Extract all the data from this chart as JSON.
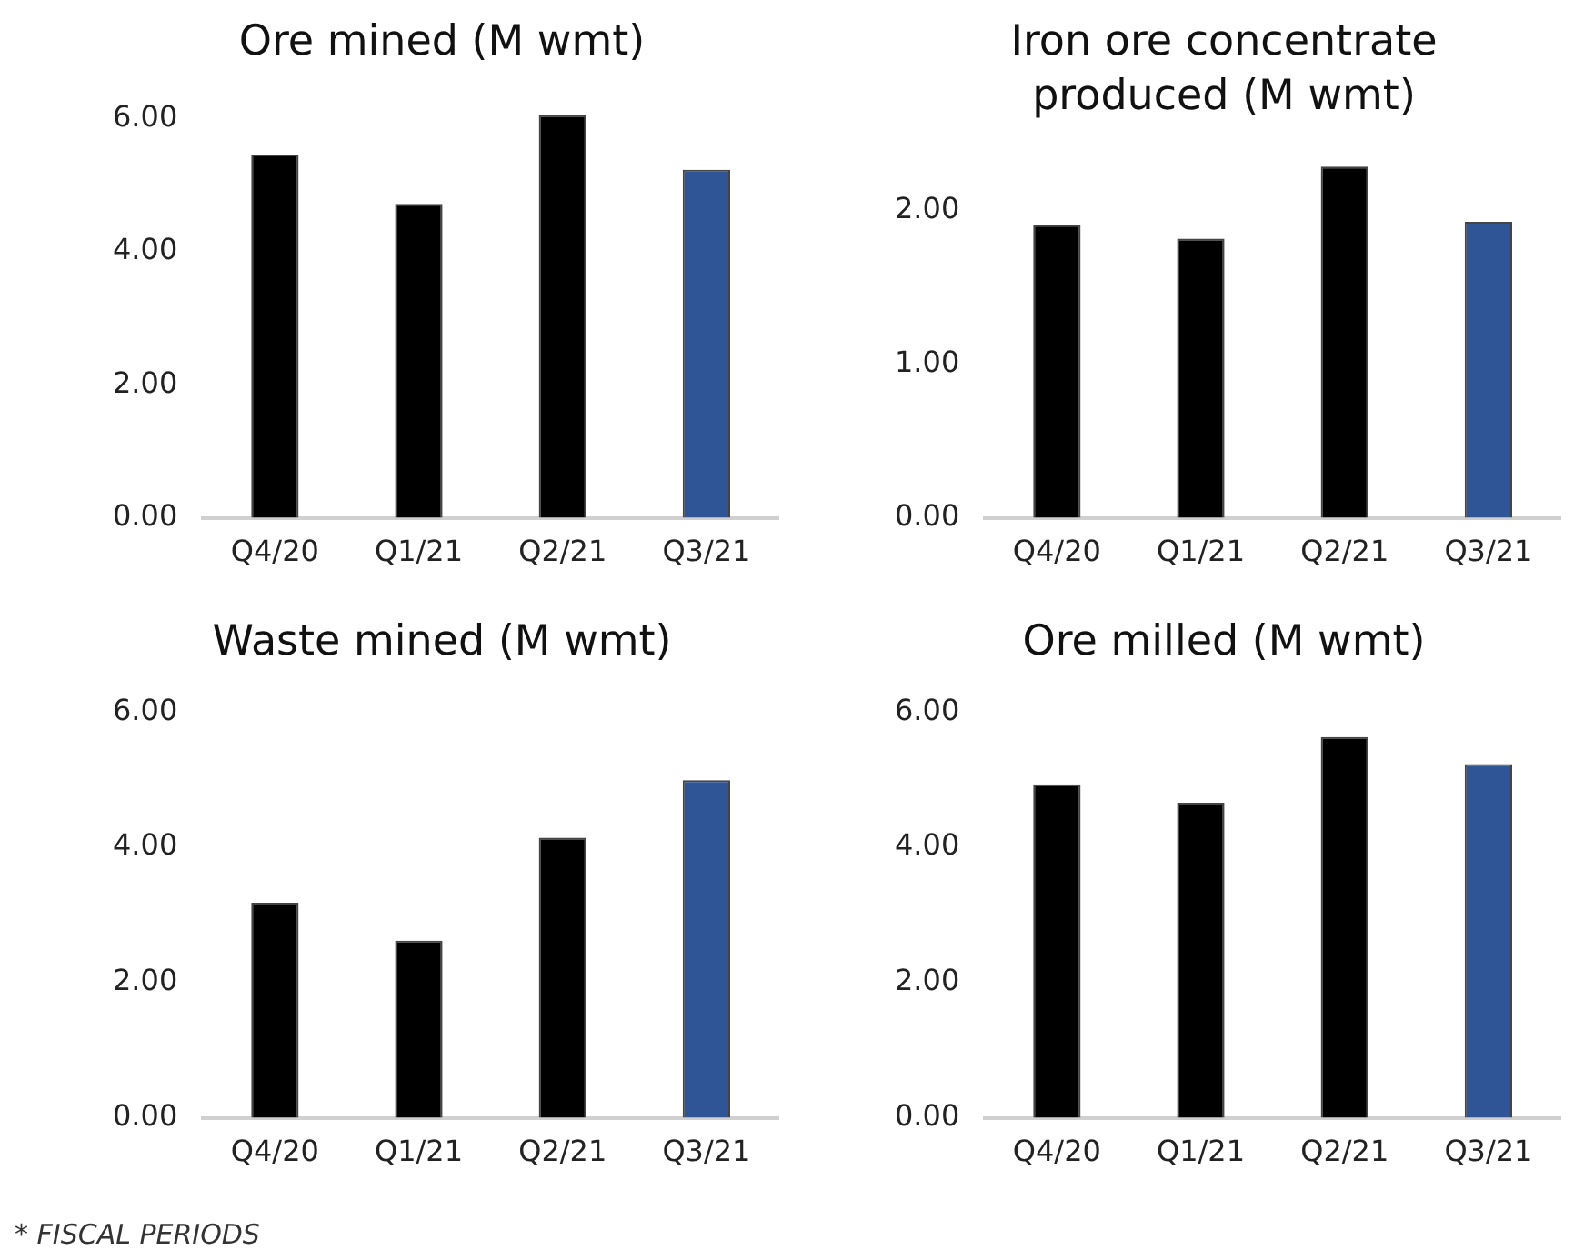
{
  "chart_data": [
    {
      "type": "bar",
      "title": "Ore mined (M wmt)",
      "categories": [
        "Q4/20",
        "Q1/21",
        "Q2/21",
        "Q3/21"
      ],
      "values": [
        5.46,
        4.72,
        6.05,
        5.23
      ],
      "colors": [
        "#000000",
        "#000000",
        "#000000",
        "#2f5597"
      ],
      "ylim": [
        0,
        6.1
      ],
      "yticks": [
        {
          "value": 0,
          "label": "0.00"
        },
        {
          "value": 2,
          "label": "2.00"
        },
        {
          "value": 4,
          "label": "4.00"
        },
        {
          "value": 6,
          "label": "6.00"
        }
      ],
      "grid": false,
      "legend": false
    },
    {
      "type": "bar",
      "title": "Iron ore concentrate produced (M wmt)",
      "categories": [
        "Q4/20",
        "Q1/21",
        "Q2/21",
        "Q3/21"
      ],
      "values": [
        1.91,
        1.82,
        2.29,
        1.93
      ],
      "colors": [
        "#000000",
        "#000000",
        "#000000",
        "#2f5597"
      ],
      "ylim": [
        0,
        2.29
      ],
      "yticks": [
        {
          "value": 0,
          "label": "0.00"
        },
        {
          "value": 1,
          "label": "1.00"
        },
        {
          "value": 2,
          "label": "2.00"
        }
      ],
      "grid": false,
      "legend": false
    },
    {
      "type": "bar",
      "title": "Waste mined (M wmt)",
      "categories": [
        "Q4/20",
        "Q1/21",
        "Q2/21",
        "Q3/21"
      ],
      "values": [
        3.18,
        2.62,
        4.14,
        4.99
      ],
      "colors": [
        "#000000",
        "#000000",
        "#000000",
        "#2f5597"
      ],
      "ylim": [
        0,
        6
      ],
      "yticks": [
        {
          "value": 0,
          "label": "0.00"
        },
        {
          "value": 2,
          "label": "2.00"
        },
        {
          "value": 4,
          "label": "4.00"
        },
        {
          "value": 6,
          "label": "6.00"
        }
      ],
      "grid": false,
      "legend": false
    },
    {
      "type": "bar",
      "title": "Ore milled (M wmt)",
      "categories": [
        "Q4/20",
        "Q1/21",
        "Q2/21",
        "Q3/21"
      ],
      "values": [
        4.93,
        4.66,
        5.63,
        5.23
      ],
      "colors": [
        "#000000",
        "#000000",
        "#000000",
        "#2f5597"
      ],
      "ylim": [
        0,
        6
      ],
      "yticks": [
        {
          "value": 0,
          "label": "0.00"
        },
        {
          "value": 2,
          "label": "2.00"
        },
        {
          "value": 4,
          "label": "4.00"
        },
        {
          "value": 6,
          "label": "6.00"
        }
      ],
      "grid": false,
      "legend": false,
      "annotations": [
        "* FISCAL PERIODS"
      ]
    }
  ]
}
